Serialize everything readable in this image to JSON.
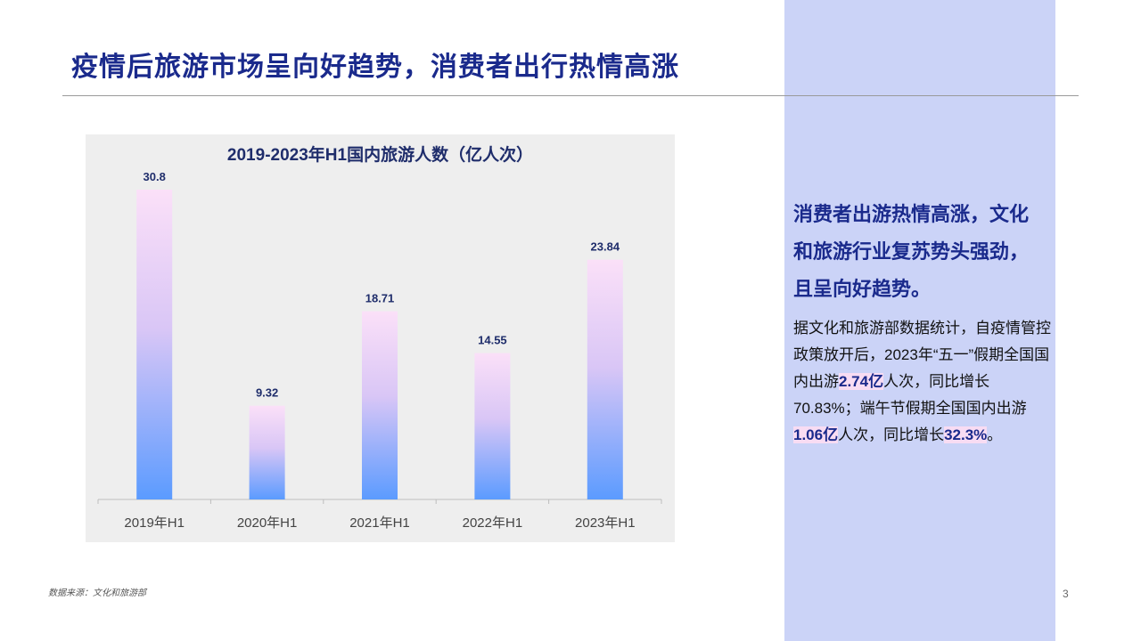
{
  "slide": {
    "title": "疫情后旅游市场呈向好趋势，消费者出行热情高涨",
    "source": "数据来源：文化和旅游部",
    "page_number": "3"
  },
  "sidebar": {
    "headline": "消费者出游热情高涨，文化和旅游行业复苏势头强劲，且呈向好趋势。",
    "body": {
      "p1": "据文化和旅游部数据统计，自疫情管控政策放开后，2023年“五一”假期全国国内出游",
      "h1": "2.74亿",
      "p2": "人次，同比增长70.83%；端午节假期全国国内出游",
      "h2": "1.06亿",
      "p3": "人次，同比增长",
      "h3": "32.3%",
      "p4": "。"
    }
  },
  "colors": {
    "title": "#1a2a8c",
    "panel": "#cbd3f7",
    "bar_top": "#fbe0f8",
    "bar_bottom": "#5b9bff",
    "highlight": "#f8dcf3"
  },
  "chart_data": {
    "type": "bar",
    "title": "2019-2023年H1国内旅游人数（亿人次）",
    "categories": [
      "2019年H1",
      "2020年H1",
      "2021年H1",
      "2022年H1",
      "2023年H1"
    ],
    "values": [
      30.8,
      9.32,
      18.71,
      14.55,
      23.84
    ],
    "value_labels": [
      "30.8",
      "9.32",
      "18.71",
      "14.55",
      "23.84"
    ],
    "ylim": [
      0,
      30.8
    ],
    "grid": false,
    "xlabel": "",
    "ylabel": ""
  }
}
